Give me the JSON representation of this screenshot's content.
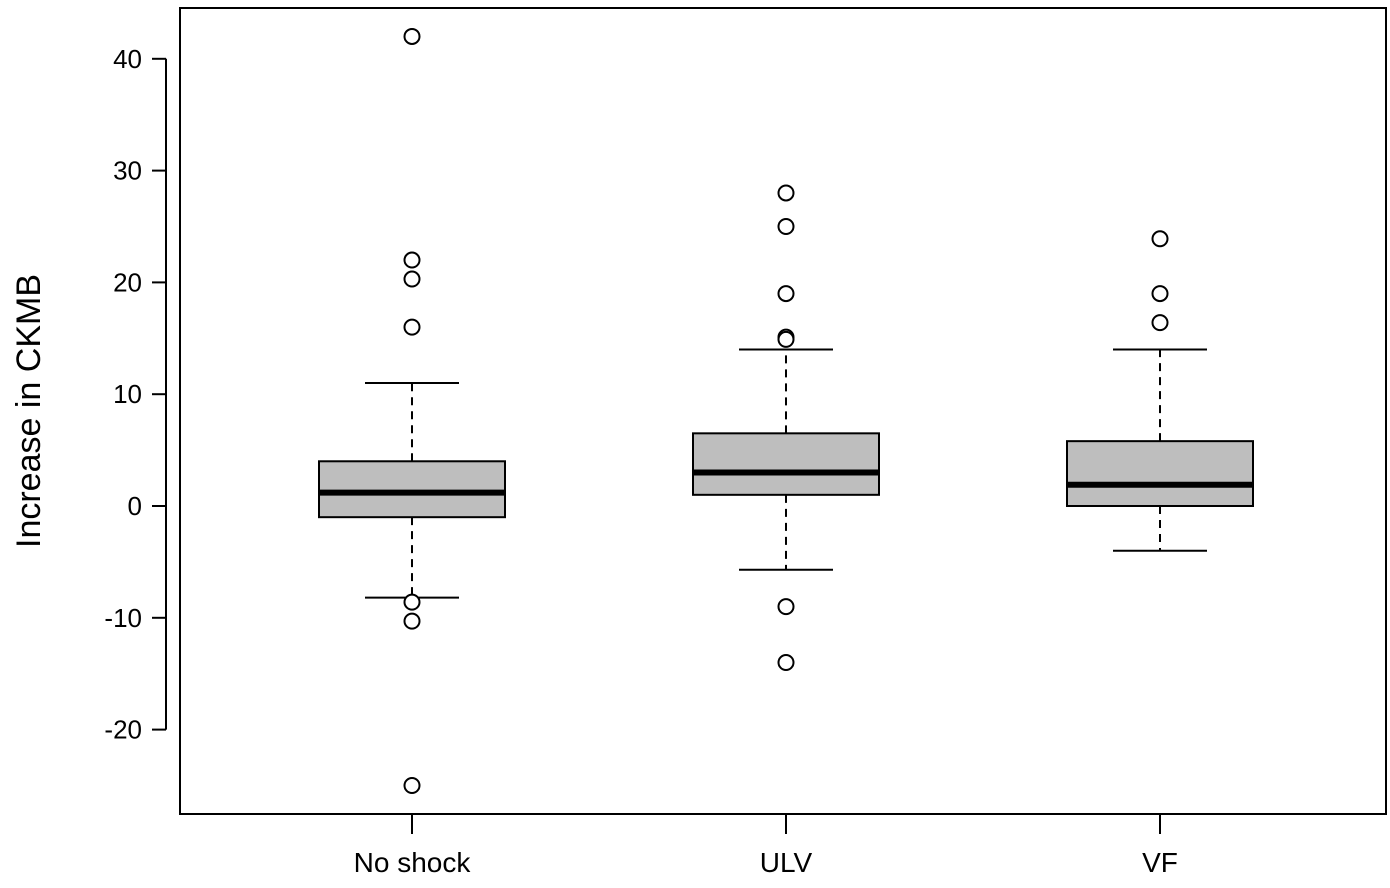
{
  "chart_data": {
    "type": "boxplot",
    "title": "",
    "xlabel": "",
    "ylabel": "Increase in CKMB",
    "ylim": [
      -28,
      45
    ],
    "yticks": [
      -20,
      -10,
      0,
      10,
      20,
      30,
      40
    ],
    "grid": false,
    "box_fill": "#bebebe",
    "categories": [
      "No shock",
      "ULV",
      "VF"
    ],
    "boxes": [
      {
        "name": "No shock",
        "whisker_low": -8.2,
        "q1": -1,
        "median": 1.2,
        "q3": 4,
        "whisker_high": 11,
        "outliers": [
          42,
          22,
          20.3,
          16,
          -8.6,
          -10.3,
          -25
        ]
      },
      {
        "name": "ULV",
        "whisker_low": -5.7,
        "q1": 1,
        "median": 3,
        "q3": 6.5,
        "whisker_high": 14,
        "outliers": [
          28,
          25,
          19,
          15.1,
          14.9,
          -9,
          -14
        ]
      },
      {
        "name": "VF",
        "whisker_low": -4,
        "q1": 0,
        "median": 1.9,
        "q3": 5.8,
        "whisker_high": 14,
        "outliers": [
          23.9,
          19,
          16.4
        ]
      }
    ]
  }
}
